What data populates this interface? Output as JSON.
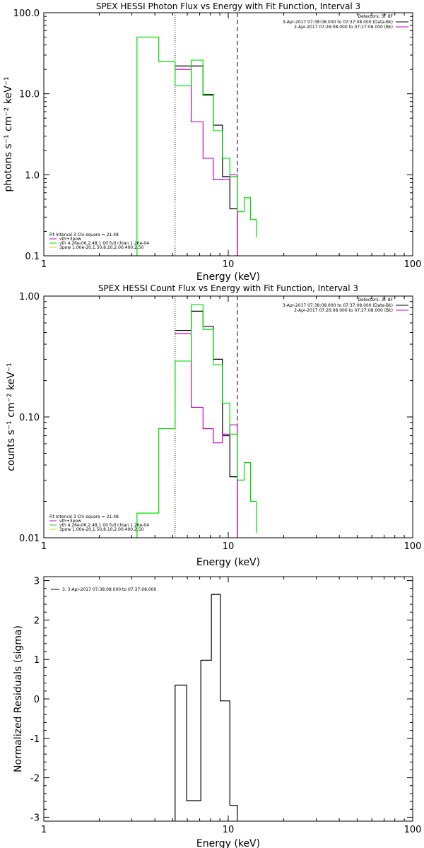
{
  "chart_data": [
    {
      "type": "line",
      "title": "SPEX HESSI Photon Flux vs Energy with Fit Function, Interval 3",
      "xlabel": "Energy (keV)",
      "ylabel": "photons s⁻¹ cm⁻² keV⁻¹",
      "xscale": "log",
      "yscale": "log",
      "xlim": [
        1,
        100
      ],
      "ylim": [
        0.1,
        100
      ],
      "x_ticks": [
        "1",
        "10",
        "100"
      ],
      "y_ticks": [
        "0.1",
        "1.0",
        "10.0",
        "100.0"
      ],
      "grid": false,
      "fit_lines": [
        5.15,
        11.2
      ],
      "legend_topright": {
        "header": "Detectors: 3F 8F",
        "entries": [
          {
            "label": "3-Apr-2017 07:38:08.000 to 07:37:08.000 (Data-Bk)",
            "color": "#000000"
          },
          {
            "label": "2-Apr-2017 07:26:08.000 to 07:27:08.000 (Bk)",
            "color": "#cc00cc"
          }
        ]
      },
      "legend_bottomleft": {
        "header": "Fit Interval 3   Chi-square = 21.48",
        "entries": [
          {
            "label": "vth+3pow",
            "color": "#cc00cc"
          },
          {
            "label": "vth 4.26e-06,2.48,1.00  full chian 1.26e-04",
            "color": "#00dd00"
          },
          {
            "label": "3pow 1.00e-20,1.50,8.10,2.00,400,2.50",
            "color": "#ddcc00"
          }
        ]
      },
      "series": [
        {
          "name": "3-Apr-2017 07:38:08.000 to 07:37:08.000 (Data-Bk)",
          "color": "#000000",
          "edges": [
            5.15,
            6.3,
            7.3,
            8.3,
            9.3,
            10.2,
            11.2
          ],
          "values": [
            22,
            22,
            9.8,
            4.1,
            0.95,
            0.38
          ]
        },
        {
          "name": "2-Apr-2017 07:26:08.000 to 07:27:08.000 (Bk)",
          "color": "#cc00cc",
          "edges": [
            5.15,
            6.3,
            7.3,
            8.3,
            9.3,
            10.2,
            11.2
          ],
          "values": [
            20,
            4.5,
            1.6,
            0.87,
            0.88,
            1.0
          ]
        },
        {
          "name": "vth 4.26e-06,2.48,1.00  full chian 1.26e-04",
          "color": "#00dd00",
          "edges": [
            3.2,
            4.2,
            5.15,
            6.3,
            7.3,
            8.3,
            9.3,
            10.2,
            11.2,
            12.2,
            13.2,
            14.2
          ],
          "values": [
            50,
            25,
            12.5,
            26,
            9.5,
            3.5,
            1.6,
            0.95,
            0.35,
            0.52,
            0.28,
            0.17
          ],
          "start_from_bottom": true
        }
      ]
    },
    {
      "type": "line",
      "title": "SPEX HESSI Count Flux vs Energy with Fit Function, Interval 3",
      "xlabel": "Energy (keV)",
      "ylabel": "counts s⁻¹ cm⁻² keV⁻¹",
      "xscale": "log",
      "yscale": "log",
      "xlim": [
        1,
        100
      ],
      "ylim": [
        0.01,
        1.0
      ],
      "x_ticks": [
        "1",
        "10",
        "100"
      ],
      "y_ticks": [
        "0.01",
        "0.10",
        "1.00"
      ],
      "grid": false,
      "fit_lines": [
        5.15,
        11.2
      ],
      "legend_topright": {
        "header": "Detectors: 3F 8F",
        "entries": [
          {
            "label": "3-Apr-2017 07:38:08.000 to 07:37:08.000 (Data-Bk)",
            "color": "#000000"
          },
          {
            "label": "2-Apr-2017 07:26:08.000 to 07:27:08.000 (Bk)",
            "color": "#cc00cc"
          }
        ]
      },
      "legend_bottomleft": {
        "header": "Fit Interval 3   Chi-square = 21.48",
        "entries": [
          {
            "label": "vth+3pow",
            "color": "#cc00cc"
          },
          {
            "label": "vth 4.26e-06,2.48,1.00  full chian 1.26e-04",
            "color": "#00dd00"
          },
          {
            "label": "3pow 1.00e-20,1.50,8.10,2.00,400,2.50",
            "color": "#ddcc00"
          }
        ]
      },
      "series": [
        {
          "name": "3-Apr-2017 07:38:08.000 to 07:37:08.000 (Data-Bk)",
          "color": "#000000",
          "edges": [
            5.15,
            6.3,
            7.3,
            8.3,
            9.3,
            10.2,
            11.2
          ],
          "values": [
            0.52,
            0.75,
            0.56,
            0.3,
            0.07,
            0.032
          ]
        },
        {
          "name": "2-Apr-2017 07:26:08.000 to 07:27:08.000 (Bk)",
          "color": "#cc00cc",
          "edges": [
            5.15,
            6.3,
            7.3,
            8.3,
            9.3,
            10.2,
            11.2
          ],
          "values": [
            0.49,
            0.12,
            0.08,
            0.061,
            0.072,
            0.086
          ]
        },
        {
          "name": "vth 4.26e-06,2.48,1.00  full chian 1.26e-04",
          "color": "#00dd00",
          "edges": [
            3.2,
            4.2,
            5.15,
            6.3,
            7.3,
            8.3,
            9.3,
            10.2,
            11.2,
            12.2,
            13.2,
            14.2
          ],
          "values": [
            0.016,
            0.08,
            0.29,
            0.85,
            0.53,
            0.27,
            0.13,
            0.072,
            0.03,
            0.042,
            0.02,
            0.011
          ],
          "start_from_bottom": true
        }
      ]
    },
    {
      "type": "line",
      "title": "",
      "xlabel": "Energy (keV)",
      "ylabel": "Normalized Residuals (sigma)",
      "xscale": "log",
      "yscale": "linear",
      "xlim": [
        1,
        100
      ],
      "ylim": [
        -3.1,
        3.1
      ],
      "x_ticks": [
        "1",
        "10",
        "100"
      ],
      "y_ticks": [
        "-3",
        "-2",
        "-1",
        "0",
        "1",
        "2",
        "3"
      ],
      "grid": false,
      "fit_lines": [],
      "legend_topleft": {
        "entries": [
          {
            "label": "3.  3-Apr-2017 07:38:08.000 to 07:37:08.000",
            "color": "#000000"
          }
        ]
      },
      "series": [
        {
          "name": "3.  3-Apr-2017 07:38:08.000 to 07:37:08.000",
          "color": "#000000",
          "edges": [
            5.15,
            5.95,
            7.1,
            8.1,
            9.05,
            10.2,
            11.2
          ],
          "values": [
            0.35,
            -2.58,
            0.98,
            2.65,
            -0.05,
            -2.7
          ],
          "start_from_bottom": true
        }
      ]
    }
  ]
}
